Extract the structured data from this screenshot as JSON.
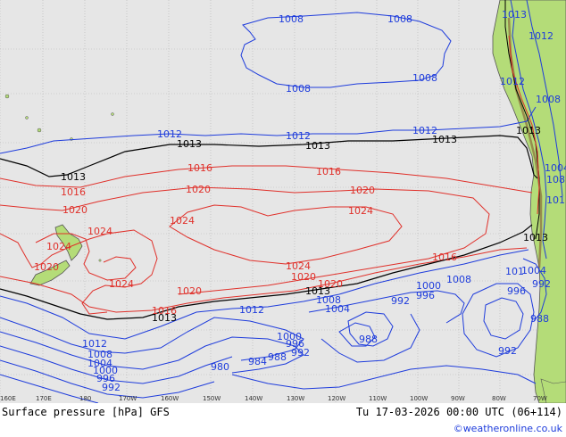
{
  "title": "Surface pressure [hPa] GFS",
  "valid_time": "Tu 17-03-2026 00:00 UTC (06+114)",
  "credit": "©weatheronline.co.uk",
  "colors": {
    "low": "#1e3cdc",
    "high": "#e0302a",
    "standard": "#000000",
    "land": "#b4dc78",
    "ocean": "#e6e6e6",
    "grid": "#b4b4b4"
  },
  "lon_ticks": [
    "160E",
    "170E",
    "180",
    "170W",
    "160W",
    "150W",
    "140W",
    "130W",
    "120W",
    "110W",
    "100W",
    "90W",
    "80W",
    "70W"
  ],
  "labels": {
    "b1008_top_l": "1008",
    "b1008_top_r": "1008",
    "b1008_mid_l": "1008",
    "b1008_mid_r": "1008",
    "b1012_a": "1012",
    "b1012_b": "1012",
    "b1012_c": "1012",
    "k1013_a": "1013",
    "k1013_b": "1013",
    "k1013_c": "1013",
    "k1013_d": "1013",
    "k1013_e": "1013",
    "k1013_f": "1013",
    "k1013_g": "1013",
    "k1013_h": "1013",
    "r1016_a": "1016",
    "r1016_b": "1016",
    "r1016_c": "1016",
    "r1016_d": "1016",
    "r1016_e": "1016",
    "r1020_a": "1020",
    "r1020_b": "1020",
    "r1020_c": "1020",
    "r1020_d": "1020",
    "r1020_e": "1020",
    "r1020_f": "1020",
    "r1020_g": "1020",
    "r1024_a": "1024",
    "r1024_b": "1024",
    "r1024_c": "1024",
    "r1024_d": "1024",
    "r1024_e": "1024",
    "r1024_f": "1024",
    "b1012_s1": "1012",
    "b1012_s2": "1012",
    "b1008_s1": "1008",
    "b1008_s2": "1008",
    "b1008_s3": "1008",
    "b1004_s1": "1004",
    "b1004_s2": "1004",
    "b1004_s3": "1004",
    "b1000_s1": "1000",
    "b1000_s2": "1000",
    "b1000_s3": "1000",
    "b996_s1": "996",
    "b996_s2": "996",
    "b996_s3": "996",
    "b996_s4": "996",
    "b992_s1": "992",
    "b992_s2": "992",
    "b992_s3": "992",
    "b992_s4": "992",
    "b992_s5": "992",
    "b988_s1": "988",
    "b988_s2": "988",
    "b988_s3": "988",
    "b984_s1": "984",
    "b980_s1": "980",
    "b101_s1": "101",
    "c1013_top": "1013",
    "c1012_top": "1012",
    "c1008_r": "1008",
    "c1012_r": "1012",
    "c108_r": "108",
    "c1004_r": "1004",
    "c101_r": "101"
  }
}
